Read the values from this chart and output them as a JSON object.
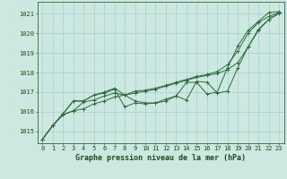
{
  "title": "Graphe pression niveau de la mer (hPa)",
  "background_color": "#cce8e0",
  "grid_color": "#99cccc",
  "line_color": "#2d6b3a",
  "xlim": [
    -0.5,
    23.5
  ],
  "ylim": [
    1014.4,
    1021.6
  ],
  "yticks": [
    1015,
    1016,
    1017,
    1018,
    1019,
    1020,
    1021
  ],
  "xticks": [
    0,
    1,
    2,
    3,
    4,
    5,
    6,
    7,
    8,
    9,
    10,
    11,
    12,
    13,
    14,
    15,
    16,
    17,
    18,
    19,
    20,
    21,
    22,
    23
  ],
  "series": [
    [
      1014.6,
      1015.3,
      1015.85,
      1016.05,
      1016.15,
      1016.4,
      1016.55,
      1016.75,
      1016.85,
      1016.95,
      1017.05,
      1017.15,
      1017.3,
      1017.45,
      1017.6,
      1017.75,
      1017.85,
      1017.95,
      1018.15,
      1018.5,
      1019.3,
      1020.2,
      1020.7,
      1021.0
    ],
    [
      1014.6,
      1015.3,
      1015.85,
      1016.05,
      1016.5,
      1016.6,
      1016.8,
      1016.95,
      1016.85,
      1017.05,
      1017.1,
      1017.2,
      1017.35,
      1017.5,
      1017.65,
      1017.8,
      1017.9,
      1018.05,
      1018.4,
      1019.1,
      1020.0,
      1020.55,
      1020.85,
      1021.05
    ],
    [
      1014.6,
      1015.3,
      1015.9,
      1016.55,
      1016.55,
      1016.85,
      1016.95,
      1017.15,
      1016.25,
      1016.45,
      1016.4,
      1016.45,
      1016.55,
      1016.8,
      1016.6,
      1017.55,
      1017.5,
      1016.95,
      1017.05,
      1018.25,
      1019.3,
      1020.15,
      1020.7,
      1021.05
    ],
    [
      1014.6,
      1015.3,
      1015.9,
      1016.55,
      1016.55,
      1016.85,
      1017.0,
      1017.2,
      1016.85,
      1016.55,
      1016.45,
      1016.45,
      1016.65,
      1016.8,
      1017.5,
      1017.5,
      1016.9,
      1017.0,
      1018.25,
      1019.35,
      1020.15,
      1020.6,
      1021.05,
      1021.1
    ]
  ],
  "xlabel_fontsize": 6.0,
  "tick_fontsize": 5.0,
  "marker_size": 2.5,
  "linewidth": 0.7
}
